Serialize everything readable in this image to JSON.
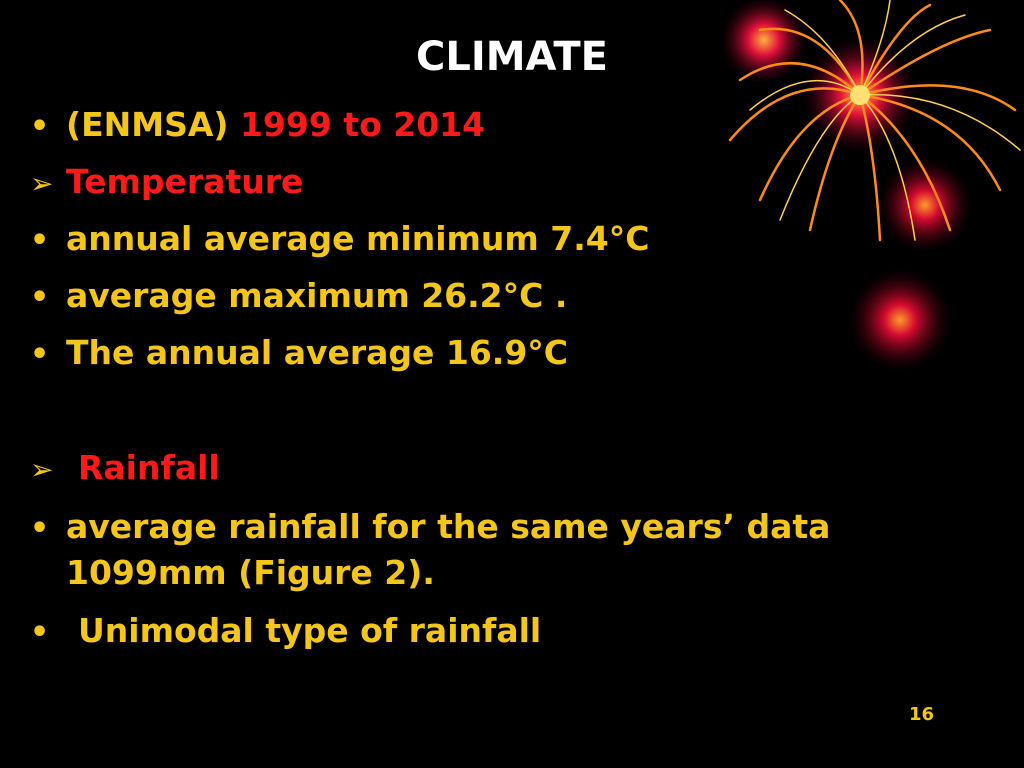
{
  "slide": {
    "title": "CLIMATE",
    "lines": [
      {
        "prefix": "(ENMSA) ",
        "highlight": "1999 to 2014"
      },
      {
        "text": "Temperature"
      },
      {
        "text": "annual average minimum 7.4°C"
      },
      {
        "text": "average maximum 26.2°C ."
      },
      {
        "text": "The annual average 16.9°C"
      },
      {
        "text": "Rainfall"
      },
      {
        "text1": "average rainfall for the same years’ data",
        "text2": "1099mm (Figure 2)."
      },
      {
        "text": "Unimodal type of rainfall"
      }
    ],
    "page_number": "16"
  },
  "decoration": {
    "icon": "fireworks-icon",
    "colors": {
      "orange": "#ff8c00",
      "red": "#d9001f",
      "yellow": "#ffd24a"
    }
  }
}
